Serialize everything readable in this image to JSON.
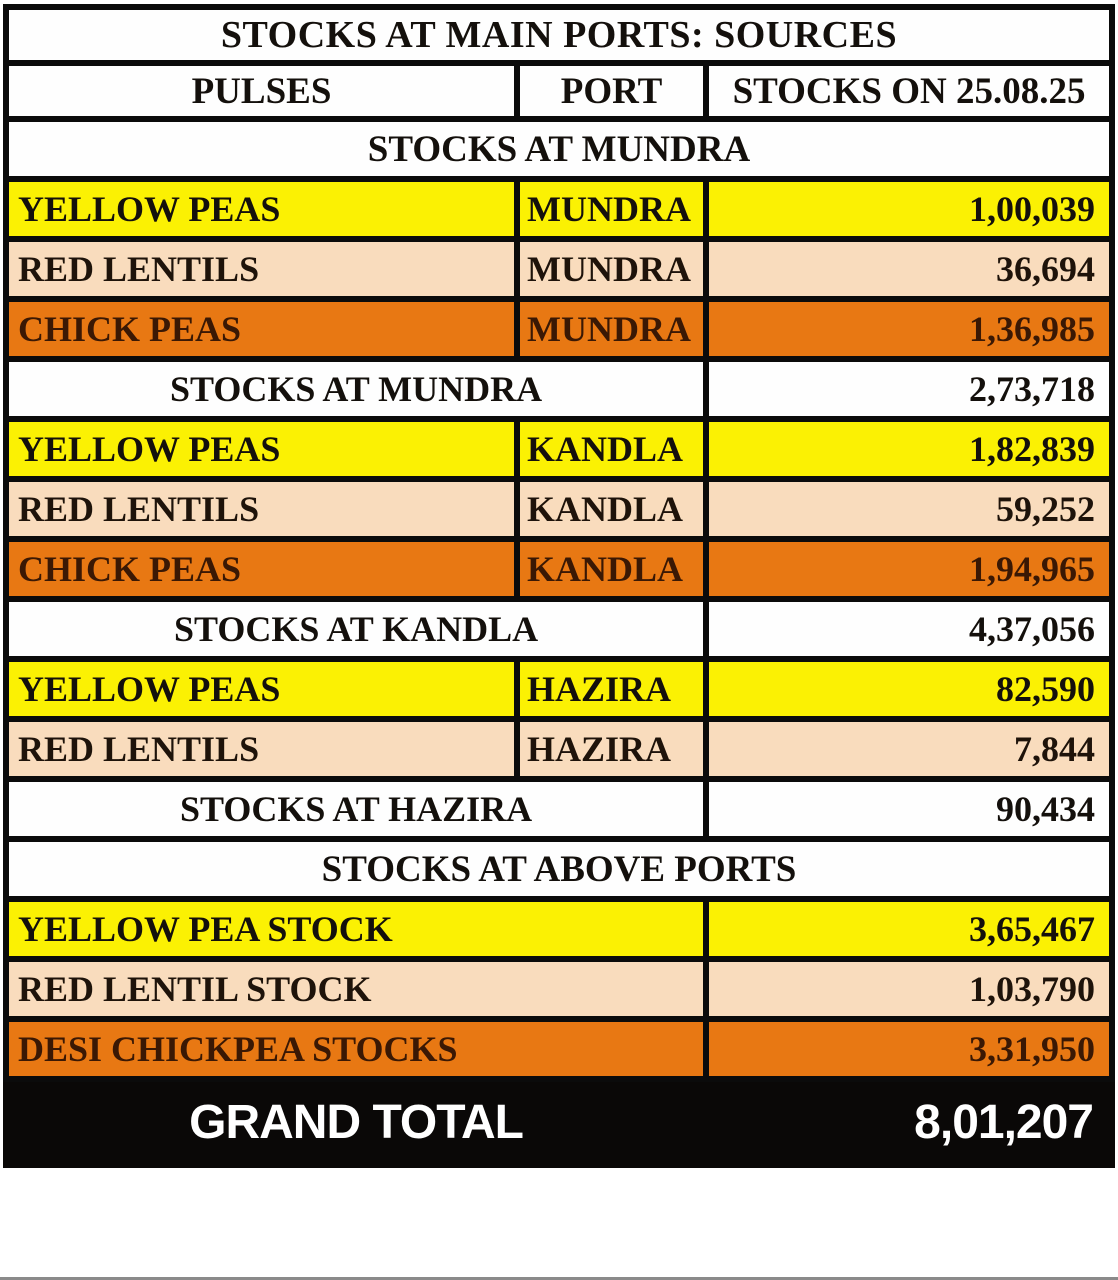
{
  "title": "STOCKS AT MAIN PORTS: SOURCES",
  "columns": [
    "PULSES",
    "PORT",
    "STOCKS ON 25.08.25"
  ],
  "colors": {
    "yellow": "#FBF103",
    "peach": "#F9DCBD",
    "orange": "#E87813",
    "text": "#14100C",
    "orange_text": "#3A1804",
    "border": "#0B0B0B",
    "grand_bg": "#0A0807",
    "grand_text": "#FFFFFF"
  },
  "rows": [
    {
      "type": "section",
      "label": "STOCKS AT MUNDRA"
    },
    {
      "type": "data",
      "style": "yellow",
      "pulse": "YELLOW PEAS",
      "port": "MUNDRA",
      "value": "1,00,039"
    },
    {
      "type": "data",
      "style": "peach",
      "pulse": "RED LENTILS",
      "port": "MUNDRA",
      "value": "36,694"
    },
    {
      "type": "data",
      "style": "orange",
      "pulse": "CHICK PEAS",
      "port": "MUNDRA",
      "value": "1,36,985"
    },
    {
      "type": "subtotal",
      "label": "STOCKS AT MUNDRA",
      "value": "2,73,718"
    },
    {
      "type": "data",
      "style": "yellow",
      "pulse": "YELLOW PEAS",
      "port": "KANDLA",
      "value": "1,82,839"
    },
    {
      "type": "data",
      "style": "peach",
      "pulse": "RED LENTILS",
      "port": "KANDLA",
      "value": "59,252"
    },
    {
      "type": "data",
      "style": "orange",
      "pulse": "CHICK PEAS",
      "port": "KANDLA",
      "value": "1,94,965"
    },
    {
      "type": "subtotal",
      "label": "STOCKS AT KANDLA",
      "value": "4,37,056"
    },
    {
      "type": "data",
      "style": "yellow",
      "pulse": "YELLOW PEAS",
      "port": "HAZIRA",
      "value": "82,590"
    },
    {
      "type": "data",
      "style": "peach",
      "pulse": "RED LENTILS",
      "port": "HAZIRA",
      "value": "7,844"
    },
    {
      "type": "subtotal",
      "label": "STOCKS AT HAZIRA",
      "value": "90,434"
    },
    {
      "type": "section",
      "label": "STOCKS AT ABOVE PORTS"
    },
    {
      "type": "data2",
      "style": "yellow",
      "pulse": "YELLOW PEA STOCK",
      "value": "3,65,467"
    },
    {
      "type": "data2",
      "style": "peach",
      "pulse": "RED LENTIL STOCK",
      "value": "1,03,790"
    },
    {
      "type": "data2",
      "style": "orange",
      "pulse": "DESI CHICKPEA STOCKS",
      "value": "3,31,950"
    }
  ],
  "grand_total": {
    "label": "GRAND TOTAL",
    "value": "8,01,207"
  },
  "chart_data": {
    "type": "table",
    "title": "STOCKS AT MAIN PORTS: SOURCES",
    "columns": [
      "PULSES",
      "PORT",
      "STOCKS ON 25.08.25"
    ],
    "port_totals": {
      "MUNDRA": 273718,
      "KANDLA": 437056,
      "HAZIRA": 90434
    },
    "pulse_totals": {
      "YELLOW PEA STOCK": 365467,
      "RED LENTIL STOCK": 103790,
      "DESI CHICKPEA STOCKS": 331950
    },
    "grand_total": 801207
  }
}
